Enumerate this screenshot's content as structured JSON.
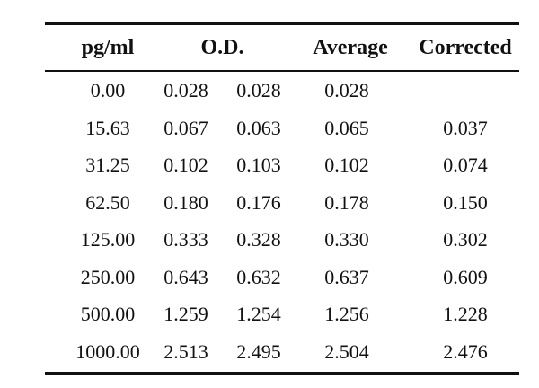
{
  "table": {
    "headers": {
      "concentration": "pg/ml",
      "od": "O.D.",
      "average": "Average",
      "corrected": "Corrected"
    },
    "rows": [
      {
        "conc": "0.00",
        "od1": "0.028",
        "od2": "0.028",
        "avg": "0.028",
        "cor": ""
      },
      {
        "conc": "15.63",
        "od1": "0.067",
        "od2": "0.063",
        "avg": "0.065",
        "cor": "0.037"
      },
      {
        "conc": "31.25",
        "od1": "0.102",
        "od2": "0.103",
        "avg": "0.102",
        "cor": "0.074"
      },
      {
        "conc": "62.50",
        "od1": "0.180",
        "od2": "0.176",
        "avg": "0.178",
        "cor": "0.150"
      },
      {
        "conc": "125.00",
        "od1": "0.333",
        "od2": "0.328",
        "avg": "0.330",
        "cor": "0.302"
      },
      {
        "conc": "250.00",
        "od1": "0.643",
        "od2": "0.632",
        "avg": "0.637",
        "cor": "0.609"
      },
      {
        "conc": "500.00",
        "od1": "1.259",
        "od2": "1.254",
        "avg": "1.256",
        "cor": "1.228"
      },
      {
        "conc": "1000.00",
        "od1": "2.513",
        "od2": "2.495",
        "avg": "2.504",
        "cor": "2.476"
      }
    ]
  }
}
